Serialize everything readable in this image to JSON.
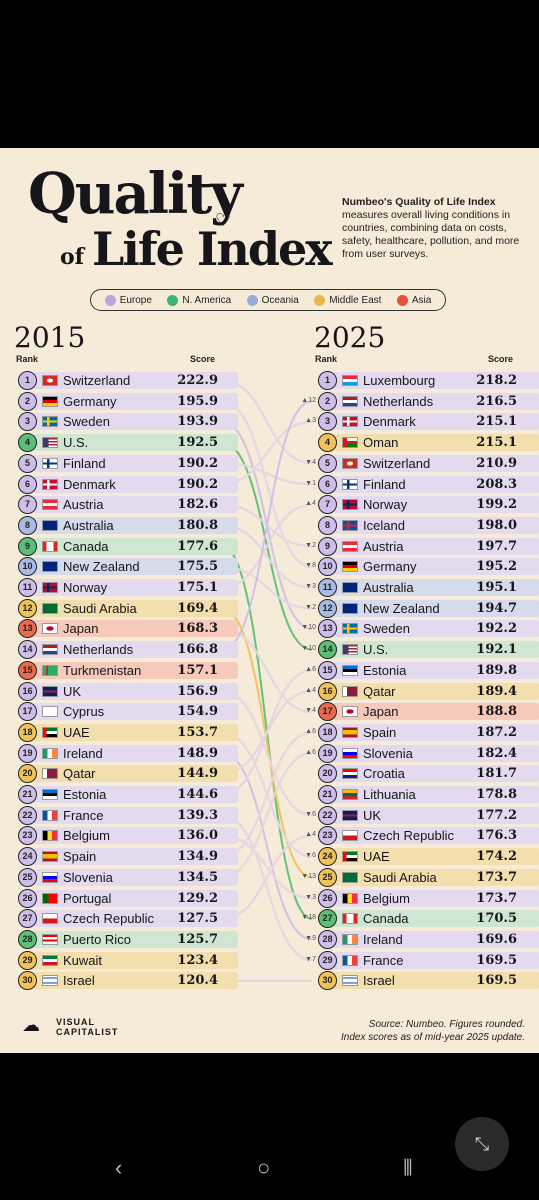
{
  "title": {
    "line1": "Quality",
    "of": "of",
    "line2": "Life Index"
  },
  "description": {
    "bold": "Numbeo's Quality of Life Index",
    "rest": "measures overall living conditions in countries, combining data on costs, safety, healthcare, pollution, and more from user surveys."
  },
  "legend": [
    {
      "label": "Europe",
      "color": "#b9a6e0"
    },
    {
      "label": "N. America",
      "color": "#3cb371"
    },
    {
      "label": "Oceania",
      "color": "#97aedc"
    },
    {
      "label": "Middle East",
      "color": "#e8b84a"
    },
    {
      "label": "Asia",
      "color": "#e5533d"
    }
  ],
  "years": {
    "left": "2015",
    "right": "2025"
  },
  "headers": {
    "rank": "Rank",
    "score": "Score"
  },
  "region_colors": {
    "Europe": "#e3daef",
    "N. America": "#cfe6d2",
    "Oceania": "#d6dbec",
    "Middle East": "#f3dfae",
    "Asia": "#f6c9bb"
  },
  "rank_circle_colors": {
    "Europe": "#cdbfea",
    "N. America": "#5bbf77",
    "Oceania": "#a9bbe3",
    "Middle East": "#efc35a",
    "Asia": "#ea6a50"
  },
  "list2015": [
    {
      "rank": "1",
      "country": "Switzerland",
      "score": "222.9",
      "region": "Europe",
      "flag": "ch"
    },
    {
      "rank": "2",
      "country": "Germany",
      "score": "195.9",
      "region": "Europe",
      "flag": "de"
    },
    {
      "rank": "3",
      "country": "Sweden",
      "score": "193.9",
      "region": "Europe",
      "flag": "se"
    },
    {
      "rank": "4",
      "country": "U.S.",
      "score": "192.5",
      "region": "N. America",
      "flag": "us"
    },
    {
      "rank": "5",
      "country": "Finland",
      "score": "190.2",
      "region": "Europe",
      "flag": "fi"
    },
    {
      "rank": "6",
      "country": "Denmark",
      "score": "190.2",
      "region": "Europe",
      "flag": "dk"
    },
    {
      "rank": "7",
      "country": "Austria",
      "score": "182.6",
      "region": "Europe",
      "flag": "at"
    },
    {
      "rank": "8",
      "country": "Australia",
      "score": "180.8",
      "region": "Oceania",
      "flag": "au"
    },
    {
      "rank": "9",
      "country": "Canada",
      "score": "177.6",
      "region": "N. America",
      "flag": "ca"
    },
    {
      "rank": "10",
      "country": "New Zealand",
      "score": "175.5",
      "region": "Oceania",
      "flag": "nz"
    },
    {
      "rank": "11",
      "country": "Norway",
      "score": "175.1",
      "region": "Europe",
      "flag": "no"
    },
    {
      "rank": "12",
      "country": "Saudi Arabia",
      "score": "169.4",
      "region": "Middle East",
      "flag": "sa"
    },
    {
      "rank": "13",
      "country": "Japan",
      "score": "168.3",
      "region": "Asia",
      "flag": "jp"
    },
    {
      "rank": "14",
      "country": "Netherlands",
      "score": "166.8",
      "region": "Europe",
      "flag": "nl"
    },
    {
      "rank": "15",
      "country": "Turkmenistan",
      "score": "157.1",
      "region": "Asia",
      "flag": "tm"
    },
    {
      "rank": "16",
      "country": "UK",
      "score": "156.9",
      "region": "Europe",
      "flag": "uk"
    },
    {
      "rank": "17",
      "country": "Cyprus",
      "score": "154.9",
      "region": "Europe",
      "flag": "cy"
    },
    {
      "rank": "18",
      "country": "UAE",
      "score": "153.7",
      "region": "Middle East",
      "flag": "ae"
    },
    {
      "rank": "19",
      "country": "Ireland",
      "score": "148.9",
      "region": "Europe",
      "flag": "ie"
    },
    {
      "rank": "20",
      "country": "Qatar",
      "score": "144.9",
      "region": "Middle East",
      "flag": "qa"
    },
    {
      "rank": "21",
      "country": "Estonia",
      "score": "144.6",
      "region": "Europe",
      "flag": "ee"
    },
    {
      "rank": "22",
      "country": "France",
      "score": "139.3",
      "region": "Europe",
      "flag": "fr"
    },
    {
      "rank": "23",
      "country": "Belgium",
      "score": "136.0",
      "region": "Europe",
      "flag": "be"
    },
    {
      "rank": "24",
      "country": "Spain",
      "score": "134.9",
      "region": "Europe",
      "flag": "es"
    },
    {
      "rank": "25",
      "country": "Slovenia",
      "score": "134.5",
      "region": "Europe",
      "flag": "si"
    },
    {
      "rank": "26",
      "country": "Portugal",
      "score": "129.2",
      "region": "Europe",
      "flag": "pt"
    },
    {
      "rank": "27",
      "country": "Czech Republic",
      "score": "127.5",
      "region": "Europe",
      "flag": "cz"
    },
    {
      "rank": "28",
      "country": "Puerto Rico",
      "score": "125.7",
      "region": "N. America",
      "flag": "pr"
    },
    {
      "rank": "29",
      "country": "Kuwait",
      "score": "123.4",
      "region": "Middle East",
      "flag": "kw"
    },
    {
      "rank": "30",
      "country": "Israel",
      "score": "120.4",
      "region": "Middle East",
      "flag": "il"
    }
  ],
  "list2025": [
    {
      "rank": "1",
      "country": "Luxembourg",
      "score": "218.2",
      "region": "Europe",
      "flag": "lu",
      "change": ""
    },
    {
      "rank": "2",
      "country": "Netherlands",
      "score": "216.5",
      "region": "Europe",
      "flag": "nl",
      "change": "▲12"
    },
    {
      "rank": "3",
      "country": "Denmark",
      "score": "215.1",
      "region": "Europe",
      "flag": "dk",
      "change": "▲3"
    },
    {
      "rank": "4",
      "country": "Oman",
      "score": "215.1",
      "region": "Middle East",
      "flag": "om",
      "change": ""
    },
    {
      "rank": "5",
      "country": "Switzerland",
      "score": "210.9",
      "region": "Europe",
      "flag": "ch",
      "change": "▼4"
    },
    {
      "rank": "6",
      "country": "Finland",
      "score": "208.3",
      "region": "Europe",
      "flag": "fi",
      "change": "▼1"
    },
    {
      "rank": "7",
      "country": "Norway",
      "score": "199.2",
      "region": "Europe",
      "flag": "no",
      "change": "▲4"
    },
    {
      "rank": "8",
      "country": "Iceland",
      "score": "198.0",
      "region": "Europe",
      "flag": "is",
      "change": ""
    },
    {
      "rank": "9",
      "country": "Austria",
      "score": "197.7",
      "region": "Europe",
      "flag": "at",
      "change": "▼2"
    },
    {
      "rank": "10",
      "country": "Germany",
      "score": "195.2",
      "region": "Europe",
      "flag": "de",
      "change": "▼8"
    },
    {
      "rank": "11",
      "country": "Australia",
      "score": "195.1",
      "region": "Oceania",
      "flag": "au",
      "change": "▼3"
    },
    {
      "rank": "12",
      "country": "New Zealand",
      "score": "194.7",
      "region": "Oceania",
      "flag": "nz",
      "change": "▼2"
    },
    {
      "rank": "13",
      "country": "Sweden",
      "score": "192.2",
      "region": "Europe",
      "flag": "se",
      "change": "▼10"
    },
    {
      "rank": "14",
      "country": "U.S.",
      "score": "192.1",
      "region": "N. America",
      "flag": "us",
      "change": "▼10"
    },
    {
      "rank": "15",
      "country": "Estonia",
      "score": "189.8",
      "region": "Europe",
      "flag": "ee",
      "change": "▲6"
    },
    {
      "rank": "16",
      "country": "Qatar",
      "score": "189.4",
      "region": "Middle East",
      "flag": "qa",
      "change": "▲4"
    },
    {
      "rank": "17",
      "country": "Japan",
      "score": "188.8",
      "region": "Asia",
      "flag": "jp",
      "change": "▼4"
    },
    {
      "rank": "18",
      "country": "Spain",
      "score": "187.2",
      "region": "Europe",
      "flag": "es",
      "change": "▲6"
    },
    {
      "rank": "19",
      "country": "Slovenia",
      "score": "182.4",
      "region": "Europe",
      "flag": "si",
      "change": "▲6"
    },
    {
      "rank": "20",
      "country": "Croatia",
      "score": "181.7",
      "region": "Europe",
      "flag": "hr",
      "change": ""
    },
    {
      "rank": "21",
      "country": "Lithuania",
      "score": "178.8",
      "region": "Europe",
      "flag": "lt",
      "change": ""
    },
    {
      "rank": "22",
      "country": "UK",
      "score": "177.2",
      "region": "Europe",
      "flag": "uk",
      "change": "▼6"
    },
    {
      "rank": "23",
      "country": "Czech Republic",
      "score": "176.3",
      "region": "Europe",
      "flag": "cz",
      "change": "▲4"
    },
    {
      "rank": "24",
      "country": "UAE",
      "score": "174.2",
      "region": "Middle East",
      "flag": "ae",
      "change": "▼6"
    },
    {
      "rank": "25",
      "country": "Saudi Arabia",
      "score": "173.7",
      "region": "Middle East",
      "flag": "sa",
      "change": "▼13"
    },
    {
      "rank": "26",
      "country": "Belgium",
      "score": "173.7",
      "region": "Europe",
      "flag": "be",
      "change": "▼3"
    },
    {
      "rank": "27",
      "country": "Canada",
      "score": "170.5",
      "region": "N. America",
      "flag": "ca",
      "change": "▼18"
    },
    {
      "rank": "28",
      "country": "Ireland",
      "score": "169.6",
      "region": "Europe",
      "flag": "ie",
      "change": "▼9"
    },
    {
      "rank": "29",
      "country": "France",
      "score": "169.5",
      "region": "Europe",
      "flag": "fr",
      "change": "▼7"
    },
    {
      "rank": "30",
      "country": "Israel",
      "score": "169.5",
      "region": "Middle East",
      "flag": "il",
      "change": ""
    }
  ],
  "footer": {
    "brand_line1": "VISUAL",
    "brand_line2": "CAPITALIST",
    "source_line1": "Source: Numbeo. Figures rounded.",
    "source_line2": "Index scores as of mid-year 2025 update."
  },
  "nav": {
    "back": "‹",
    "home": "○",
    "recents": "⦀",
    "fab": "⤡"
  }
}
